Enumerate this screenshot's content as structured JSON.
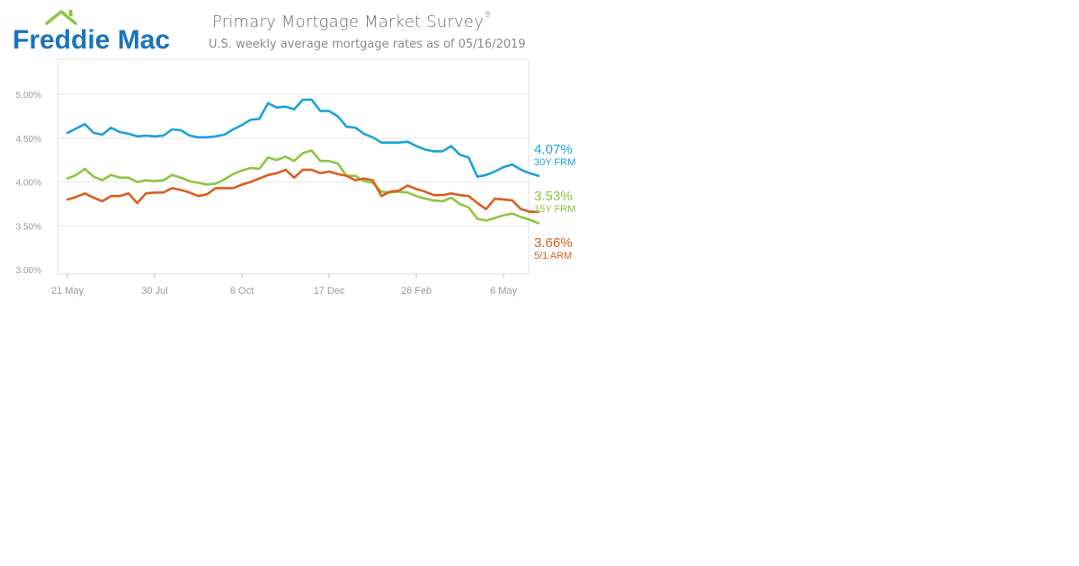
{
  "header": {
    "logo_text": "Freddie Mac",
    "title": "Primary Mortgage Market Survey",
    "title_mark": "®",
    "subtitle": "U.S. weekly average mortgage rates as of 05/16/2019"
  },
  "colors": {
    "brand_blue": "#1a75bb",
    "brand_green": "#8dc63f",
    "frm30": "#1ba2dc",
    "frm15": "#8dc63f",
    "arm51": "#d95f1f",
    "grid": "#e6e6e6",
    "axis_text": "#9a9a9a"
  },
  "legend": [
    {
      "value": "4.07%",
      "name": "30Y FRM",
      "color": "#1ba2dc"
    },
    {
      "value": "3.53%",
      "name": "15Y FRM",
      "color": "#8dc63f"
    },
    {
      "value": "3.66%",
      "name": "5/1 ARM",
      "color": "#d95f1f"
    }
  ],
  "chart_data": {
    "type": "line",
    "title": "Primary Mortgage Market Survey",
    "subtitle": "U.S. weekly average mortgage rates as of 05/16/2019",
    "x_ticks": [
      {
        "label": "21 May",
        "week": 0
      },
      {
        "label": "30 Jul",
        "week": 10
      },
      {
        "label": "8 Oct",
        "week": 20
      },
      {
        "label": "17 Dec",
        "week": 30
      },
      {
        "label": "26 Feb",
        "week": 40
      },
      {
        "label": "6 May",
        "week": 50
      }
    ],
    "y_ticks": [
      {
        "label": "3.00%",
        "value": 3.0
      },
      {
        "label": "3.50%",
        "value": 3.5
      },
      {
        "label": "4.00%",
        "value": 4.0
      },
      {
        "label": "4.50%",
        "value": 4.5
      },
      {
        "label": "5.00%",
        "value": 5.0
      }
    ],
    "ylim": [
      2.95,
      5.4
    ],
    "grid": true,
    "legend_position": "right",
    "series": [
      {
        "name": "30Y FRM",
        "color": "#1ba2dc",
        "values": [
          4.56,
          4.61,
          4.66,
          4.56,
          4.54,
          4.62,
          4.57,
          4.55,
          4.52,
          4.53,
          4.52,
          4.53,
          4.6,
          4.59,
          4.53,
          4.51,
          4.51,
          4.52,
          4.54,
          4.6,
          4.65,
          4.71,
          4.72,
          4.9,
          4.85,
          4.86,
          4.83,
          4.94,
          4.94,
          4.81,
          4.81,
          4.75,
          4.63,
          4.62,
          4.55,
          4.51,
          4.45,
          4.45,
          4.45,
          4.46,
          4.41,
          4.37,
          4.35,
          4.35,
          4.41,
          4.31,
          4.28,
          4.06,
          4.08,
          4.12,
          4.17,
          4.2,
          4.14,
          4.1,
          4.07
        ]
      },
      {
        "name": "15Y FRM",
        "color": "#8dc63f",
        "values": [
          4.04,
          4.08,
          4.15,
          4.06,
          4.02,
          4.08,
          4.05,
          4.05,
          4.0,
          4.02,
          4.01,
          4.02,
          4.08,
          4.05,
          4.01,
          3.99,
          3.97,
          3.98,
          4.03,
          4.09,
          4.13,
          4.16,
          4.15,
          4.28,
          4.25,
          4.29,
          4.24,
          4.33,
          4.36,
          4.24,
          4.24,
          4.21,
          4.07,
          4.07,
          4.01,
          3.99,
          3.89,
          3.88,
          3.89,
          3.88,
          3.84,
          3.81,
          3.79,
          3.78,
          3.82,
          3.75,
          3.71,
          3.58,
          3.56,
          3.59,
          3.62,
          3.64,
          3.6,
          3.57,
          3.53
        ]
      },
      {
        "name": "5/1 ARM",
        "color": "#d95f1f",
        "values": [
          3.8,
          3.83,
          3.87,
          3.82,
          3.78,
          3.84,
          3.84,
          3.87,
          3.76,
          3.87,
          3.88,
          3.88,
          3.93,
          3.91,
          3.88,
          3.84,
          3.86,
          3.93,
          3.93,
          3.93,
          3.97,
          4.0,
          4.04,
          4.08,
          4.1,
          4.14,
          4.05,
          4.14,
          4.14,
          4.1,
          4.12,
          4.09,
          4.07,
          4.02,
          4.04,
          4.02,
          3.84,
          3.89,
          3.9,
          3.96,
          3.92,
          3.89,
          3.85,
          3.85,
          3.87,
          3.85,
          3.84,
          3.76,
          3.69,
          3.81,
          3.8,
          3.79,
          3.69,
          3.66,
          3.66
        ]
      }
    ]
  }
}
